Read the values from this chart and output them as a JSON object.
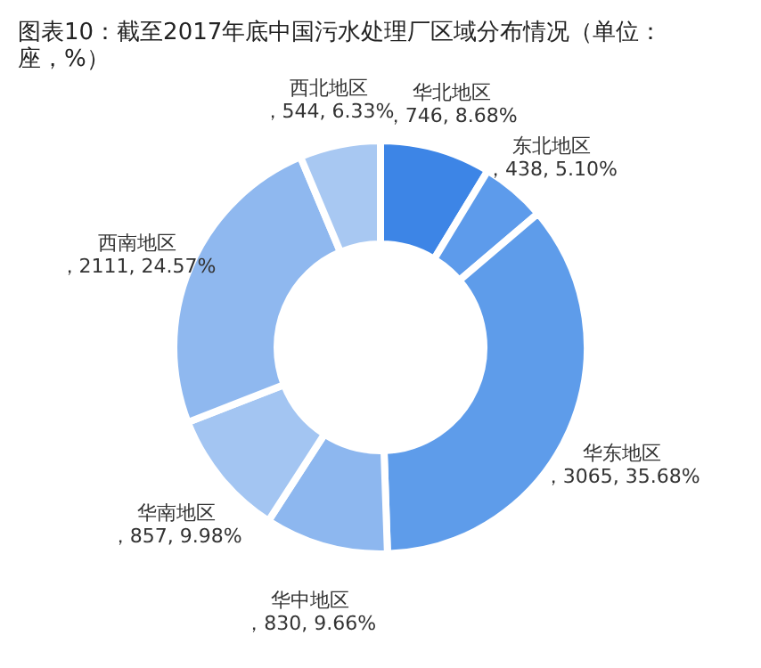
{
  "chart_data": {
    "type": "donut",
    "title": "图表10：截至2017年底中国污水处理厂区域分布情况（单位：座，%）",
    "categories": [
      "华北地区",
      "东北地区",
      "华东地区",
      "华中地区",
      "华南地区",
      "西南地区",
      "西北地区"
    ],
    "values": [
      746,
      438,
      3065,
      830,
      857,
      2111,
      544
    ],
    "value_labels": [
      "，746, 8.68%",
      "，438, 5.10%",
      "，3065, 35.68%",
      "，830, 9.66%",
      "，857, 9.98%",
      "，2111, 24.57%",
      "，544, 6.33%"
    ],
    "colors": [
      "#3d85e6",
      "#5d9beb",
      "#5e9cea",
      "#8db7ef",
      "#a3c5f2",
      "#8fb8ef",
      "#a8c8f2"
    ]
  }
}
